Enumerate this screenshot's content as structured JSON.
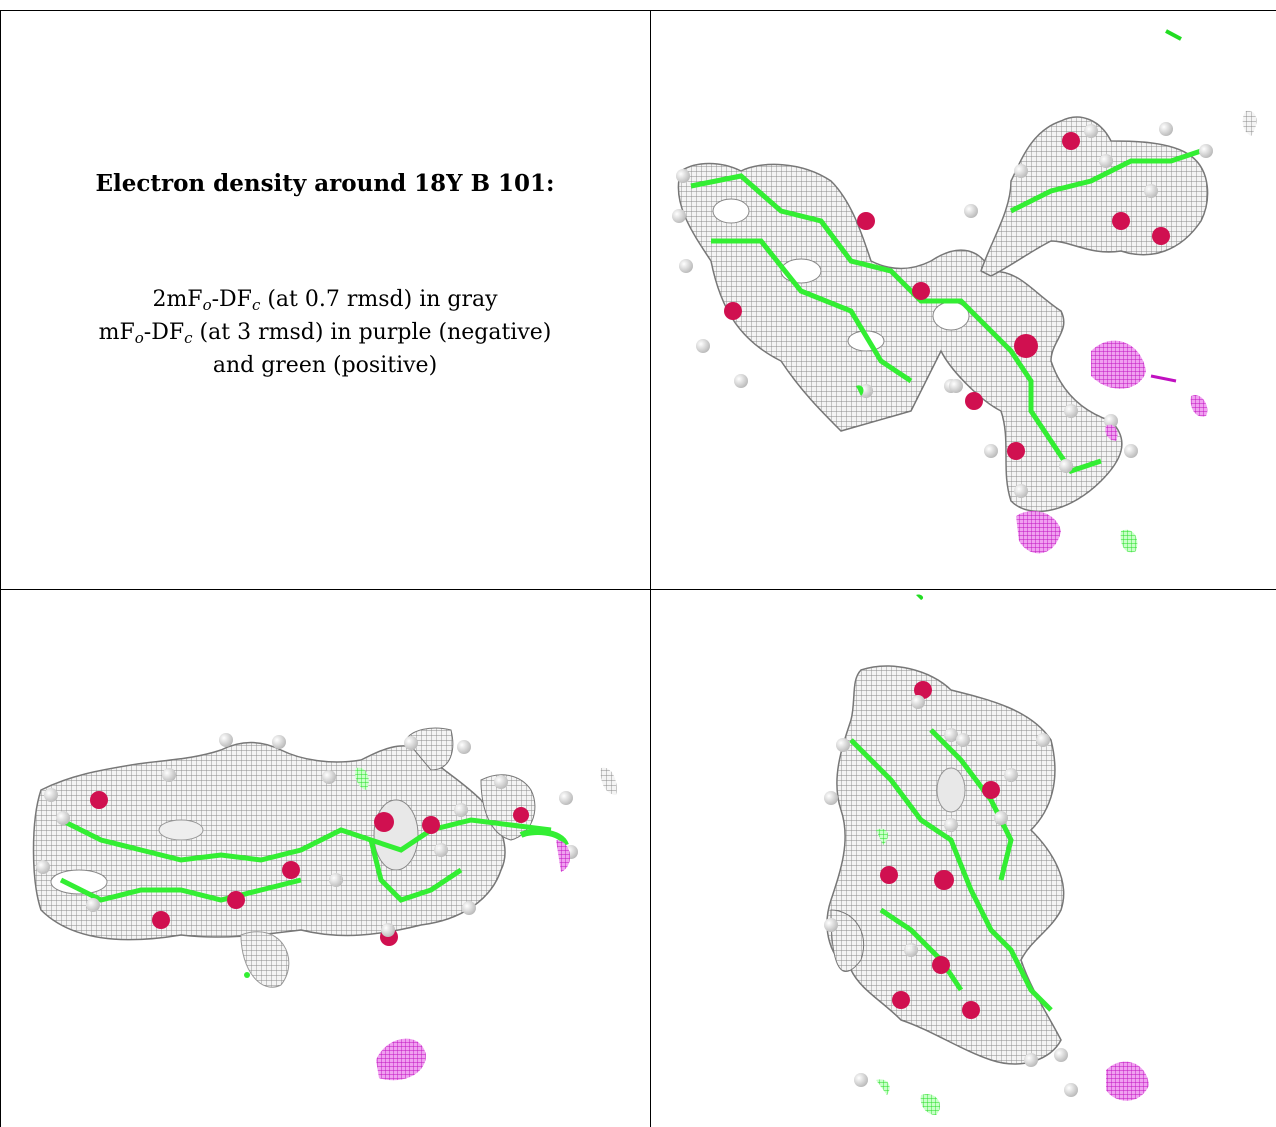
{
  "caption": {
    "title": "Electron density around 18Y B 101:",
    "map1": {
      "prefix": "2mF",
      "sub1": "o",
      "mid": "-DF",
      "sub2": "c",
      "suffix": " (at 0.7 rmsd) in gray"
    },
    "map2": {
      "prefix": "mF",
      "sub1": "o",
      "mid": "-DF",
      "sub2": "c",
      "suffix": " (at 3 rmsd) in purple (negative)"
    },
    "map2_cont": "and green (positive)"
  },
  "colors": {
    "mesh_gray": "#9a9a9a",
    "bond_green": "#33ee33",
    "oxygen_red": "#d01050",
    "negative_purple": "#d020d0",
    "hydrogen": "#e8e8e8"
  },
  "views": [
    "view-top-right",
    "view-bottom-left",
    "view-bottom-right"
  ]
}
